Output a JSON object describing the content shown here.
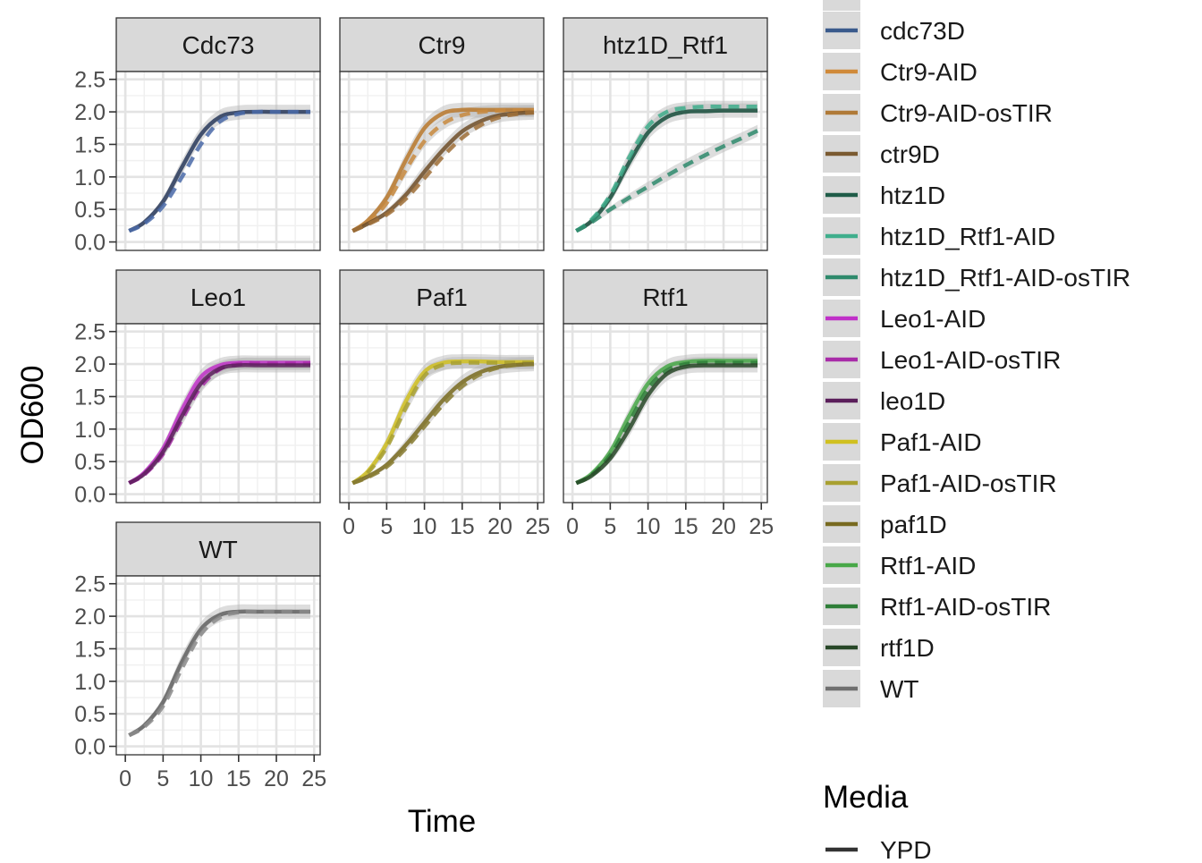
{
  "chart_data": {
    "type": "line",
    "facet_layout": "wrap",
    "xlabel": "Time",
    "ylabel": "OD600",
    "xlim": [
      0,
      25
    ],
    "ylim": [
      0,
      2.5
    ],
    "x_ticks": [
      "0",
      "5",
      "10",
      "15",
      "20",
      "25"
    ],
    "y_ticks": [
      "0.0",
      "0.5",
      "1.0",
      "1.5",
      "2.0",
      "2.5"
    ],
    "grid": true,
    "legend_position": "right",
    "strain_legend": [
      {
        "label": "cdc73D",
        "color": "#3a5a8c"
      },
      {
        "label": "Ctr9-AID",
        "color": "#d08a3a"
      },
      {
        "label": "Ctr9-AID-osTIR",
        "color": "#b07a38"
      },
      {
        "label": "ctr9D",
        "color": "#7a5a30"
      },
      {
        "label": "htz1D",
        "color": "#1f5c48"
      },
      {
        "label": "htz1D_Rtf1-AID",
        "color": "#3fae8c"
      },
      {
        "label": "htz1D_Rtf1-AID-osTIR",
        "color": "#2e8a6c"
      },
      {
        "label": "Leo1-AID",
        "color": "#c030c8"
      },
      {
        "label": "Leo1-AID-osTIR",
        "color": "#a82ca8"
      },
      {
        "label": "leo1D",
        "color": "#5a1e5a"
      },
      {
        "label": "Paf1-AID",
        "color": "#d0c020"
      },
      {
        "label": "Paf1-AID-osTIR",
        "color": "#a8a030"
      },
      {
        "label": "paf1D",
        "color": "#786a20"
      },
      {
        "label": "Rtf1-AID",
        "color": "#48a848"
      },
      {
        "label": "Rtf1-AID-osTIR",
        "color": "#2e7e38"
      },
      {
        "label": "rtf1D",
        "color": "#284828"
      },
      {
        "label": "WT",
        "color": "#707070"
      }
    ],
    "media_legend": {
      "title": "Media",
      "items": [
        {
          "label": "YPD",
          "linetype": "solid"
        }
      ]
    },
    "panels": [
      {
        "title": "Cdc73",
        "series": [
          {
            "strain": "cdc73D",
            "linetype": "solid",
            "color": "#28385a",
            "band": true,
            "x": [
              0.5,
              2.5,
              5,
              7.5,
              10,
              12.5,
              15,
              17.5,
              20,
              22.5,
              24.5
            ],
            "y": [
              0.17,
              0.3,
              0.62,
              1.15,
              1.65,
              1.92,
              1.99,
              2.0,
              2.0,
              2.0,
              2.0
            ]
          },
          {
            "strain": "cdc73D",
            "linetype": "dashed",
            "color": "#4a6aa8",
            "band": false,
            "x": [
              0.5,
              2.5,
              5,
              7.5,
              10,
              12.5,
              15,
              17.5,
              20,
              22.5,
              24.5
            ],
            "y": [
              0.17,
              0.28,
              0.55,
              1.0,
              1.5,
              1.85,
              1.97,
              2.0,
              2.0,
              2.0,
              2.0
            ]
          }
        ]
      },
      {
        "title": "Ctr9",
        "series": [
          {
            "strain": "Ctr9-AID",
            "linetype": "solid",
            "color": "#b8782c",
            "band": true,
            "x": [
              0.5,
              2.5,
              5,
              7.5,
              10,
              12.5,
              15,
              17.5,
              20,
              22.5,
              24.5
            ],
            "y": [
              0.17,
              0.33,
              0.68,
              1.25,
              1.75,
              1.98,
              2.03,
              2.03,
              2.03,
              2.03,
              2.03
            ]
          },
          {
            "strain": "Ctr9-AID-osTIR",
            "linetype": "dashed",
            "color": "#c88a3e",
            "band": true,
            "x": [
              0.5,
              2.5,
              5,
              7.5,
              10,
              12.5,
              15,
              17.5,
              20,
              22.5,
              24.5
            ],
            "y": [
              0.17,
              0.3,
              0.6,
              1.1,
              1.55,
              1.82,
              1.95,
              2.0,
              2.02,
              2.02,
              2.02
            ]
          },
          {
            "strain": "ctr9D",
            "linetype": "solid",
            "color": "#6e4e28",
            "band": true,
            "x": [
              0.5,
              2.5,
              5,
              7.5,
              10,
              12.5,
              15,
              17.5,
              20,
              22.5,
              24.5
            ],
            "y": [
              0.17,
              0.28,
              0.45,
              0.72,
              1.08,
              1.42,
              1.7,
              1.86,
              1.95,
              1.98,
              1.99
            ]
          },
          {
            "strain": "ctr9D",
            "linetype": "dashed",
            "color": "#a07038",
            "band": false,
            "x": [
              0.5,
              2.5,
              5,
              7.5,
              10,
              12.5,
              15,
              17.5,
              20,
              22.5,
              24.5
            ],
            "y": [
              0.17,
              0.27,
              0.42,
              0.66,
              0.98,
              1.32,
              1.6,
              1.8,
              1.92,
              1.97,
              1.99
            ]
          }
        ]
      },
      {
        "title": "htz1D_Rtf1",
        "series": [
          {
            "strain": "htz1D",
            "linetype": "solid",
            "color": "#184e3c",
            "band": true,
            "x": [
              0.5,
              2.5,
              5,
              7.5,
              10,
              12.5,
              15,
              17.5,
              20,
              22.5,
              24.5
            ],
            "y": [
              0.17,
              0.32,
              0.68,
              1.22,
              1.68,
              1.92,
              2.0,
              2.01,
              2.02,
              2.02,
              2.02
            ]
          },
          {
            "strain": "htz1D_Rtf1-AID",
            "linetype": "dashed",
            "color": "#3fae8c",
            "band": true,
            "x": [
              0.5,
              2.5,
              5,
              7.5,
              10,
              12.5,
              15,
              17.5,
              20,
              22.5,
              24.5
            ],
            "y": [
              0.17,
              0.34,
              0.72,
              1.3,
              1.78,
              2.0,
              2.06,
              2.08,
              2.08,
              2.08,
              2.08
            ]
          },
          {
            "strain": "htz1D_Rtf1-AID-osTIR",
            "linetype": "dashed",
            "color": "#2e8a6c",
            "band": true,
            "x": [
              0.5,
              2.5,
              5,
              7.5,
              10,
              12.5,
              15,
              17.5,
              20,
              22.5,
              24.5
            ],
            "y": [
              0.17,
              0.3,
              0.5,
              0.68,
              0.85,
              1.02,
              1.18,
              1.33,
              1.47,
              1.6,
              1.71
            ]
          }
        ]
      },
      {
        "title": "Leo1",
        "series": [
          {
            "strain": "Leo1-AID",
            "linetype": "solid",
            "color": "#c030c8",
            "band": true,
            "x": [
              0.5,
              2.5,
              5,
              7.5,
              10,
              12.5,
              15,
              17.5,
              20,
              22.5,
              24.5
            ],
            "y": [
              0.17,
              0.33,
              0.7,
              1.3,
              1.8,
              1.98,
              2.02,
              2.02,
              2.02,
              2.02,
              2.02
            ]
          },
          {
            "strain": "Leo1-AID-osTIR",
            "linetype": "dashed",
            "color": "#a82ca8",
            "band": true,
            "x": [
              0.5,
              2.5,
              5,
              7.5,
              10,
              12.5,
              15,
              17.5,
              20,
              22.5,
              24.5
            ],
            "y": [
              0.17,
              0.3,
              0.62,
              1.15,
              1.65,
              1.92,
              2.0,
              2.01,
              2.01,
              2.01,
              2.01
            ]
          },
          {
            "strain": "leo1D",
            "linetype": "solid",
            "color": "#5a1e5a",
            "band": true,
            "x": [
              0.5,
              2.5,
              5,
              7.5,
              10,
              12.5,
              15,
              17.5,
              20,
              22.5,
              24.5
            ],
            "y": [
              0.17,
              0.31,
              0.65,
              1.2,
              1.7,
              1.93,
              1.98,
              1.98,
              1.98,
              1.98,
              1.98
            ]
          }
        ]
      },
      {
        "title": "Paf1",
        "series": [
          {
            "strain": "Paf1-AID",
            "linetype": "solid",
            "color": "#d0c020",
            "band": true,
            "x": [
              0.5,
              2.5,
              5,
              7.5,
              10,
              12.5,
              15,
              17.5,
              20,
              22.5,
              24.5
            ],
            "y": [
              0.17,
              0.35,
              0.78,
              1.42,
              1.88,
              2.02,
              2.04,
              2.04,
              2.03,
              2.03,
              2.03
            ]
          },
          {
            "strain": "Paf1-AID-osTIR",
            "linetype": "dashed",
            "color": "#a8a030",
            "band": true,
            "x": [
              0.5,
              2.5,
              5,
              7.5,
              10,
              12.5,
              15,
              17.5,
              20,
              22.5,
              24.5
            ],
            "y": [
              0.17,
              0.33,
              0.72,
              1.32,
              1.82,
              1.99,
              2.02,
              2.02,
              2.02,
              2.02,
              2.02
            ]
          },
          {
            "strain": "paf1D",
            "linetype": "solid",
            "color": "#786a20",
            "band": true,
            "x": [
              0.5,
              2.5,
              5,
              7.5,
              10,
              12.5,
              15,
              17.5,
              20,
              22.5,
              24.5
            ],
            "y": [
              0.17,
              0.27,
              0.45,
              0.75,
              1.1,
              1.45,
              1.72,
              1.88,
              1.96,
              1.99,
              2.0
            ]
          },
          {
            "strain": "paf1D",
            "linetype": "dashed",
            "color": "#8a7e34",
            "band": false,
            "x": [
              0.5,
              2.5,
              5,
              7.5,
              10,
              12.5,
              15,
              17.5,
              20,
              22.5,
              24.5
            ],
            "y": [
              0.17,
              0.26,
              0.42,
              0.7,
              1.04,
              1.38,
              1.66,
              1.85,
              1.95,
              1.99,
              2.0
            ]
          }
        ]
      },
      {
        "title": "Rtf1",
        "series": [
          {
            "strain": "Rtf1-AID",
            "linetype": "solid",
            "color": "#48a848",
            "band": true,
            "x": [
              0.5,
              2.5,
              5,
              7.5,
              10,
              12.5,
              15,
              17.5,
              20,
              22.5,
              24.5
            ],
            "y": [
              0.17,
              0.31,
              0.65,
              1.2,
              1.7,
              1.96,
              2.03,
              2.05,
              2.05,
              2.05,
              2.05
            ]
          },
          {
            "strain": "Rtf1-AID-osTIR",
            "linetype": "dashed",
            "color": "#2e7e38",
            "band": true,
            "x": [
              0.5,
              2.5,
              5,
              7.5,
              10,
              12.5,
              15,
              17.5,
              20,
              22.5,
              24.5
            ],
            "y": [
              0.17,
              0.29,
              0.6,
              1.1,
              1.62,
              1.9,
              2.0,
              2.02,
              2.02,
              2.02,
              2.02
            ]
          },
          {
            "strain": "rtf1D",
            "linetype": "solid",
            "color": "#284828",
            "band": true,
            "x": [
              0.5,
              2.5,
              5,
              7.5,
              10,
              12.5,
              15,
              17.5,
              20,
              22.5,
              24.5
            ],
            "y": [
              0.17,
              0.28,
              0.55,
              1.0,
              1.52,
              1.85,
              1.96,
              1.98,
              1.98,
              1.98,
              1.98
            ]
          }
        ]
      },
      {
        "title": "WT",
        "series": [
          {
            "strain": "WT",
            "linetype": "solid",
            "color": "#606060",
            "band": true,
            "x": [
              0.5,
              2.5,
              5,
              7.5,
              10,
              12.5,
              15,
              17.5,
              20,
              22.5,
              24.5
            ],
            "y": [
              0.17,
              0.32,
              0.68,
              1.3,
              1.8,
              2.02,
              2.07,
              2.07,
              2.07,
              2.07,
              2.07
            ]
          },
          {
            "strain": "WT",
            "linetype": "dashed",
            "color": "#8a8a8a",
            "band": false,
            "x": [
              0.5,
              2.5,
              5,
              7.5,
              10,
              12.5,
              15,
              17.5,
              20,
              22.5,
              24.5
            ],
            "y": [
              0.17,
              0.3,
              0.62,
              1.2,
              1.72,
              1.98,
              2.06,
              2.07,
              2.07,
              2.07,
              2.07
            ]
          }
        ]
      }
    ]
  }
}
